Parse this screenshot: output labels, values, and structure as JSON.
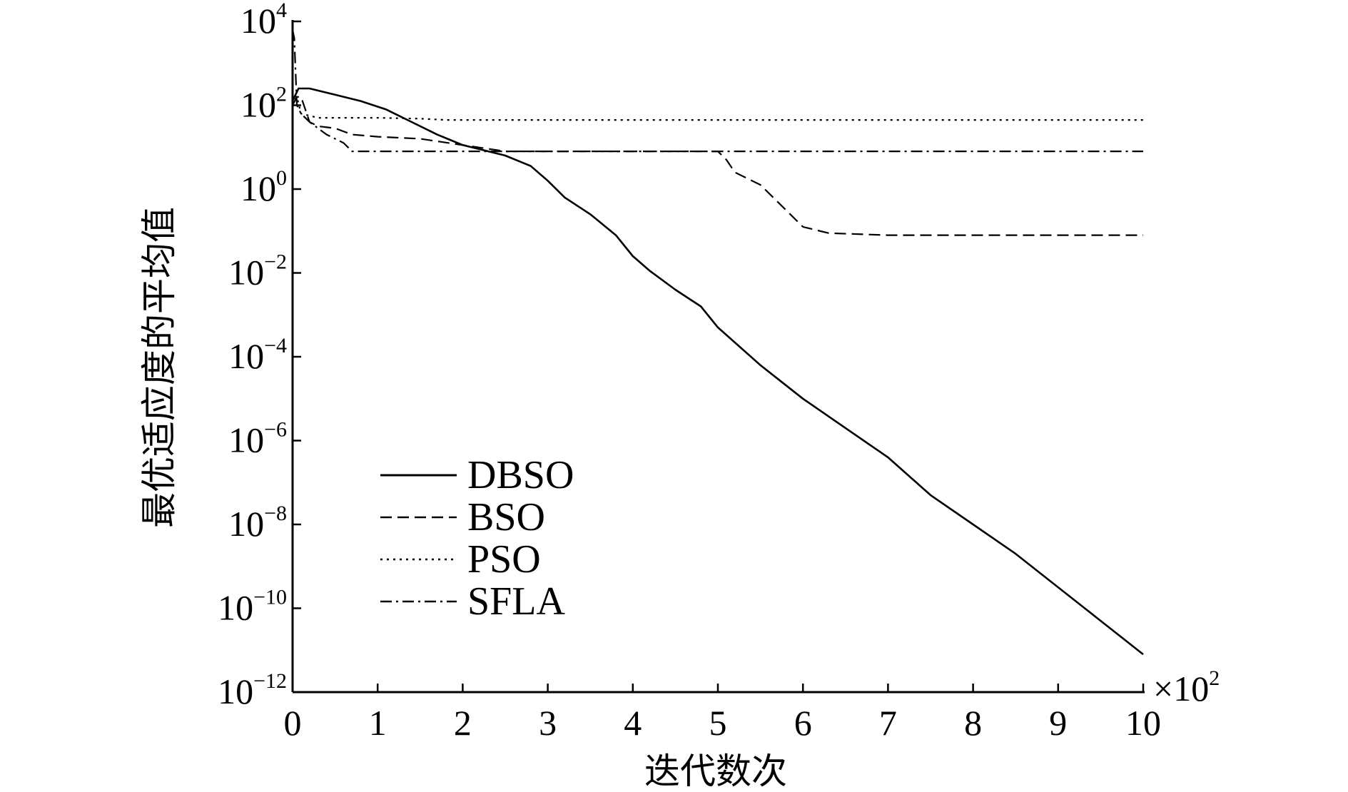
{
  "chart_data": {
    "type": "line",
    "xlabel": "迭代数次",
    "ylabel": "最优适应度的平均值",
    "x_multiplier_label": "×10",
    "x_multiplier_exponent": "2",
    "x_ticks": [
      {
        "value": 0,
        "label": "0"
      },
      {
        "value": 1,
        "label": "1"
      },
      {
        "value": 2,
        "label": "2"
      },
      {
        "value": 3,
        "label": "3"
      },
      {
        "value": 4,
        "label": "4"
      },
      {
        "value": 5,
        "label": "5"
      },
      {
        "value": 6,
        "label": "6"
      },
      {
        "value": 7,
        "label": "7"
      },
      {
        "value": 8,
        "label": "8"
      },
      {
        "value": 9,
        "label": "9"
      },
      {
        "value": 10,
        "label": "10"
      }
    ],
    "y_ticks": [
      {
        "value": 4,
        "base": "10",
        "exp": "4"
      },
      {
        "value": 2,
        "base": "10",
        "exp": "2"
      },
      {
        "value": 0,
        "base": "10",
        "exp": "0"
      },
      {
        "value": -2,
        "base": "10",
        "exp": "−2"
      },
      {
        "value": -4,
        "base": "10",
        "exp": "−4"
      },
      {
        "value": -6,
        "base": "10",
        "exp": "−6"
      },
      {
        "value": -8,
        "base": "10",
        "exp": "−8"
      },
      {
        "value": -10,
        "base": "10",
        "exp": "−10"
      },
      {
        "value": -12,
        "base": "10",
        "exp": "−12"
      }
    ],
    "xlim": [
      0,
      10
    ],
    "ylim_log10": [
      -12,
      4
    ],
    "y_scale": "log",
    "grid": false,
    "legend_position": "lower-left",
    "series": [
      {
        "name": "DBSO",
        "style": "solid",
        "color": "#000000",
        "x": [
          0,
          0.07,
          0.2,
          0.5,
          0.8,
          1.1,
          1.4,
          1.7,
          2.0,
          2.5,
          2.8,
          3.0,
          3.2,
          3.5,
          3.8,
          4.0,
          4.2,
          4.5,
          4.8,
          5.0,
          5.5,
          6.0,
          6.5,
          7.0,
          7.5,
          8.0,
          8.5,
          9.0,
          9.5,
          10.0
        ],
        "y_log10": [
          2.1,
          2.4,
          2.4,
          2.25,
          2.1,
          1.9,
          1.6,
          1.3,
          1.05,
          0.8,
          0.55,
          0.2,
          -0.2,
          -0.6,
          -1.1,
          -1.6,
          -1.95,
          -2.4,
          -2.8,
          -3.3,
          -4.2,
          -5.0,
          -5.7,
          -6.4,
          -7.3,
          -8.0,
          -8.7,
          -9.5,
          -10.3,
          -11.1
        ]
      },
      {
        "name": "BSO",
        "style": "dashed",
        "color": "#000000",
        "x": [
          0,
          0.05,
          0.1,
          0.2,
          0.3,
          0.5,
          0.7,
          1.0,
          1.5,
          2.0,
          2.5,
          3.0,
          4.0,
          5.0,
          5.1,
          5.2,
          5.5,
          5.8,
          6.0,
          6.3,
          7.0,
          8.0,
          9.0,
          10.0
        ],
        "y_log10": [
          2.0,
          2.2,
          2.2,
          1.6,
          1.5,
          1.45,
          1.3,
          1.25,
          1.2,
          1.05,
          0.9,
          0.9,
          0.9,
          0.9,
          0.7,
          0.4,
          0.1,
          -0.5,
          -0.9,
          -1.05,
          -1.1,
          -1.1,
          -1.1,
          -1.1
        ]
      },
      {
        "name": "PSO",
        "style": "dotted",
        "color": "#000000",
        "x": [
          0,
          0.02,
          0.05,
          0.1,
          0.2,
          0.3,
          1.0,
          1.5,
          1.8,
          2.0,
          4.0,
          6.0,
          8.0,
          10.0
        ],
        "y_log10": [
          2.0,
          2.1,
          2.2,
          1.8,
          1.75,
          1.7,
          1.7,
          1.68,
          1.65,
          1.65,
          1.65,
          1.65,
          1.65,
          1.65
        ]
      },
      {
        "name": "SFLA",
        "style": "dashdot",
        "color": "#000000",
        "x": [
          0,
          0.02,
          0.05,
          0.1,
          0.2,
          0.4,
          0.6,
          0.7,
          1.0,
          2.0,
          4.0,
          6.0,
          8.0,
          10.0
        ],
        "y_log10": [
          3.8,
          3.6,
          2.0,
          1.8,
          1.6,
          1.3,
          1.1,
          0.9,
          0.9,
          0.9,
          0.9,
          0.9,
          0.9,
          0.9
        ]
      }
    ]
  }
}
